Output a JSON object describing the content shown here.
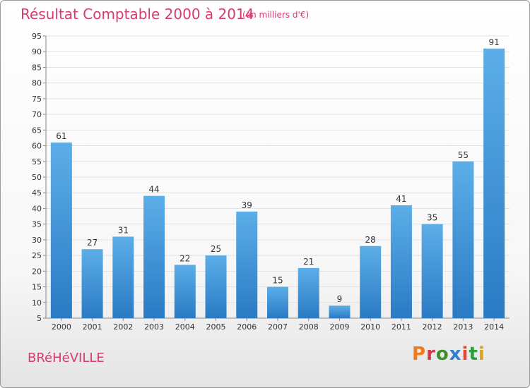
{
  "header": {
    "title": "Résultat Comptable 2000 à 2014",
    "subtitle": "(en milliers d'€)"
  },
  "footer": {
    "place": "BRéHéVILLE",
    "logo_text": "Proxiti"
  },
  "colors": {
    "title": "#d63c6b",
    "bar_top": "#5caee8",
    "bar_bottom": "#2a7ac4",
    "logo_letters": [
      "#f07a1a",
      "#d6364a",
      "#3f8f2a",
      "#2f7fd1",
      "#e04b2f",
      "#2f9e3a",
      "#e0a21a"
    ]
  },
  "chart_data": {
    "type": "bar",
    "title": "Résultat Comptable 2000 à 2014",
    "subtitle": "(en milliers d'€)",
    "categories": [
      "2000",
      "2001",
      "2002",
      "2003",
      "2004",
      "2005",
      "2006",
      "2007",
      "2008",
      "2009",
      "2010",
      "2011",
      "2012",
      "2013",
      "2014"
    ],
    "values": [
      61,
      27,
      31,
      44,
      22,
      25,
      39,
      15,
      21,
      9,
      28,
      41,
      35,
      55,
      91
    ],
    "ylim": [
      5,
      95
    ],
    "yticks": [
      5,
      10,
      15,
      20,
      25,
      30,
      35,
      40,
      45,
      50,
      55,
      60,
      65,
      70,
      75,
      80,
      85,
      90,
      95
    ],
    "grid": true,
    "data_labels": true
  }
}
